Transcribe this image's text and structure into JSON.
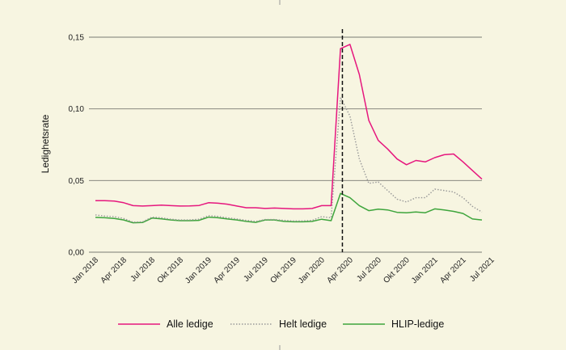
{
  "chart_data": {
    "type": "line",
    "title": "",
    "xlabel": "",
    "ylabel": "Ledighetsrate",
    "ylim": [
      0,
      0.15
    ],
    "yticks": [
      0.0,
      0.05,
      0.1,
      0.15
    ],
    "ytick_labels": [
      "0,00",
      "0,05",
      "0,10",
      "0,15"
    ],
    "grid": "horizontal",
    "legend": "bottom",
    "x": [
      "2018-01",
      "2018-02",
      "2018-03",
      "2018-04",
      "2018-05",
      "2018-06",
      "2018-07",
      "2018-08",
      "2018-09",
      "2018-10",
      "2018-11",
      "2018-12",
      "2019-01",
      "2019-02",
      "2019-03",
      "2019-04",
      "2019-05",
      "2019-06",
      "2019-07",
      "2019-08",
      "2019-09",
      "2019-10",
      "2019-11",
      "2019-12",
      "2020-01",
      "2020-02",
      "2020-03",
      "2020-04",
      "2020-05",
      "2020-06",
      "2020-07",
      "2020-08",
      "2020-09",
      "2020-10",
      "2020-11",
      "2020-12",
      "2021-01",
      "2021-02",
      "2021-03",
      "2021-04",
      "2021-05",
      "2021-06"
    ],
    "xtick_labels": [
      "Jan 2018",
      "Apr 2018",
      "Jul 2018",
      "Okt 2018",
      "Jan 2019",
      "Apr 2019",
      "Jul 2019",
      "Okt 2019",
      "Jan 2020",
      "Apr 2020",
      "Jul 2020",
      "Okt 2020",
      "Jan 2021",
      "Apr 2021",
      "Jul 2021"
    ],
    "vline": "2020-03",
    "series": [
      {
        "name": "Alle ledige",
        "color": "#e6177e",
        "style": "solid",
        "values": [
          0.036,
          0.036,
          0.0357,
          0.0345,
          0.0325,
          0.0322,
          0.0325,
          0.0328,
          0.0325,
          0.0322,
          0.0323,
          0.0326,
          0.0345,
          0.0342,
          0.0335,
          0.0322,
          0.031,
          0.031,
          0.0305,
          0.0308,
          0.0305,
          0.0302,
          0.0302,
          0.0305,
          0.0325,
          0.0325,
          0.142,
          0.145,
          0.124,
          0.092,
          0.078,
          0.072,
          0.065,
          0.061,
          0.064,
          0.063,
          0.066,
          0.068,
          0.0685,
          0.063,
          0.057,
          0.051
        ]
      },
      {
        "name": "Helt ledige",
        "color": "#999999",
        "style": "dotted",
        "values": [
          0.026,
          0.0252,
          0.0248,
          0.0235,
          0.021,
          0.0212,
          0.0245,
          0.024,
          0.023,
          0.0225,
          0.0225,
          0.023,
          0.0255,
          0.025,
          0.024,
          0.0232,
          0.0222,
          0.0215,
          0.0228,
          0.0228,
          0.0222,
          0.0218,
          0.0218,
          0.0222,
          0.0248,
          0.024,
          0.108,
          0.095,
          0.065,
          0.048,
          0.049,
          0.043,
          0.037,
          0.035,
          0.038,
          0.038,
          0.044,
          0.043,
          0.042,
          0.038,
          0.032,
          0.028
        ]
      },
      {
        "name": "HLIP-ledige",
        "color": "#3ea53c",
        "style": "solid",
        "values": [
          0.0243,
          0.024,
          0.0235,
          0.0225,
          0.0205,
          0.0207,
          0.0238,
          0.0233,
          0.0225,
          0.022,
          0.022,
          0.0222,
          0.0245,
          0.024,
          0.0232,
          0.0225,
          0.0215,
          0.0208,
          0.0225,
          0.0225,
          0.0215,
          0.0212,
          0.0212,
          0.0215,
          0.023,
          0.022,
          0.041,
          0.038,
          0.0325,
          0.029,
          0.03,
          0.0295,
          0.0278,
          0.0275,
          0.028,
          0.0275,
          0.0302,
          0.0295,
          0.0285,
          0.027,
          0.0232,
          0.0225
        ]
      }
    ]
  }
}
